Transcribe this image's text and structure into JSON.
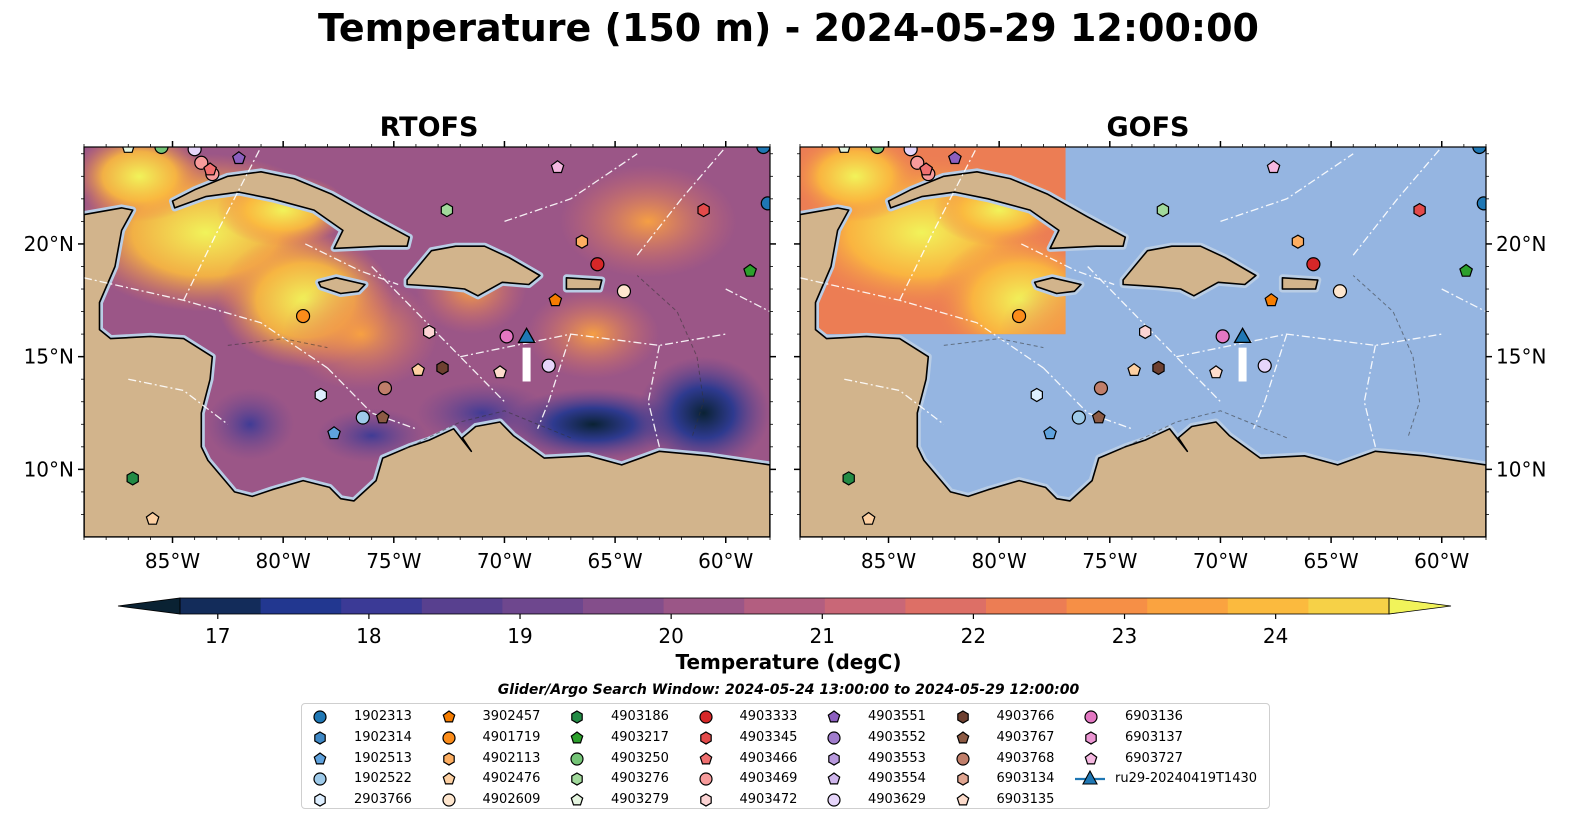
{
  "title": "Temperature (150 m) - 2024-05-29 12:00:00",
  "panels": [
    {
      "title": "RTOFS",
      "data_extent": "full"
    },
    {
      "title": "GOFS",
      "data_extent": "partial"
    }
  ],
  "axes": {
    "lon_ticks": [
      "85°W",
      "80°W",
      "75°W",
      "70°W",
      "65°W",
      "60°W"
    ],
    "lat_ticks": [
      "20°N",
      "15°N",
      "10°N"
    ],
    "lon_range": [
      -89,
      -58
    ],
    "lat_range": [
      7,
      24.3
    ]
  },
  "colorbar": {
    "label": "Temperature (degC)",
    "ticks": [
      "17",
      "18",
      "19",
      "20",
      "21",
      "22",
      "23",
      "24"
    ],
    "range": [
      16.75,
      24.75
    ],
    "extend": "both",
    "colors": [
      "#0a2233",
      "#132c5a",
      "#223790",
      "#3b3a96",
      "#58408f",
      "#6e478e",
      "#844e8b",
      "#9b5687",
      "#b35e80",
      "#c96777",
      "#dd6f66",
      "#ec7d54",
      "#f68f46",
      "#faa340",
      "#fbba3e",
      "#f6d147",
      "#f1f35a"
    ]
  },
  "legend": {
    "title": "Glider/Argo Search Window: 2024-05-24 13:00:00 to 2024-05-29 12:00:00",
    "items": [
      {
        "label": "1902313",
        "color": "#1f77b4",
        "marker": "circle"
      },
      {
        "label": "1902314",
        "color": "#3f88c5",
        "marker": "hexagon"
      },
      {
        "label": "1902513",
        "color": "#5fa2dd",
        "marker": "pentagon"
      },
      {
        "label": "1902522",
        "color": "#9ecae9",
        "marker": "circle"
      },
      {
        "label": "2903766",
        "color": "#deefff",
        "marker": "hexagon"
      },
      {
        "label": "3902457",
        "color": "#f57c00",
        "marker": "pentagon"
      },
      {
        "label": "4901719",
        "color": "#fb8c1a",
        "marker": "circle"
      },
      {
        "label": "4902113",
        "color": "#fdae61",
        "marker": "hexagon"
      },
      {
        "label": "4902476",
        "color": "#fdd0a2",
        "marker": "pentagon"
      },
      {
        "label": "4902609",
        "color": "#fee6ce",
        "marker": "circle"
      },
      {
        "label": "4903186",
        "color": "#238b45",
        "marker": "hexagon"
      },
      {
        "label": "4903217",
        "color": "#2ca02c",
        "marker": "pentagon"
      },
      {
        "label": "4903250",
        "color": "#74c476",
        "marker": "circle"
      },
      {
        "label": "4903276",
        "color": "#a1d99b",
        "marker": "hexagon"
      },
      {
        "label": "4903279",
        "color": "#e5f5e0",
        "marker": "pentagon"
      },
      {
        "label": "4903333",
        "color": "#d62728",
        "marker": "circle"
      },
      {
        "label": "4903345",
        "color": "#e34a4a",
        "marker": "hexagon"
      },
      {
        "label": "4903466",
        "color": "#ef6f6f",
        "marker": "pentagon"
      },
      {
        "label": "4903469",
        "color": "#f79b9b",
        "marker": "circle"
      },
      {
        "label": "4903472",
        "color": "#fcd4d4",
        "marker": "hexagon"
      },
      {
        "label": "4903551",
        "color": "#8c5fbf",
        "marker": "pentagon"
      },
      {
        "label": "4903552",
        "color": "#a07ccc",
        "marker": "circle"
      },
      {
        "label": "4903553",
        "color": "#b899dd",
        "marker": "hexagon"
      },
      {
        "label": "4903554",
        "color": "#cfb6ec",
        "marker": "pentagon"
      },
      {
        "label": "4903629",
        "color": "#e6d5fa",
        "marker": "circle"
      },
      {
        "label": "4903766",
        "color": "#6e4030",
        "marker": "hexagon"
      },
      {
        "label": "4903767",
        "color": "#8c5a44",
        "marker": "pentagon"
      },
      {
        "label": "4903768",
        "color": "#c07e6a",
        "marker": "circle"
      },
      {
        "label": "6903134",
        "color": "#e0a591",
        "marker": "hexagon"
      },
      {
        "label": "6903135",
        "color": "#fddccc",
        "marker": "pentagon"
      },
      {
        "label": "6903136",
        "color": "#e377c2",
        "marker": "circle"
      },
      {
        "label": "6903137",
        "color": "#eb95d2",
        "marker": "hexagon"
      },
      {
        "label": "6903727",
        "color": "#f5b8e1",
        "marker": "pentagon"
      },
      {
        "label": "ru29-20240419T1430",
        "color": "#1f77b4",
        "marker": "triangle-line"
      }
    ]
  },
  "floats": [
    {
      "id": "1902313",
      "lon": -58.1,
      "lat": 21.8
    },
    {
      "id": "1902313",
      "lon": -58.3,
      "lat": 24.3
    },
    {
      "id": "1902522",
      "lon": -76.4,
      "lat": 12.3
    },
    {
      "id": "1902513",
      "lon": -77.7,
      "lat": 11.6
    },
    {
      "id": "2903766",
      "lon": -78.3,
      "lat": 13.3
    },
    {
      "id": "3902457",
      "lon": -67.7,
      "lat": 17.5
    },
    {
      "id": "4901719",
      "lon": -79.1,
      "lat": 16.8
    },
    {
      "id": "4902113",
      "lon": -66.5,
      "lat": 20.1
    },
    {
      "id": "4902476",
      "lon": -73.9,
      "lat": 14.4
    },
    {
      "id": "4902476",
      "lon": -85.9,
      "lat": 7.8
    },
    {
      "id": "4902609",
      "lon": -64.6,
      "lat": 17.9
    },
    {
      "id": "4903186",
      "lon": -86.8,
      "lat": 9.6
    },
    {
      "id": "4903217",
      "lon": -58.9,
      "lat": 18.8
    },
    {
      "id": "4903250",
      "lon": -85.5,
      "lat": 24.3
    },
    {
      "id": "4903276",
      "lon": -72.6,
      "lat": 21.5
    },
    {
      "id": "4903279",
      "lon": -87.0,
      "lat": 24.3
    },
    {
      "id": "4903333",
      "lon": -65.8,
      "lat": 19.1
    },
    {
      "id": "4903345",
      "lon": -61.0,
      "lat": 21.5
    },
    {
      "id": "4903469",
      "lon": -83.2,
      "lat": 23.1
    },
    {
      "id": "4903469",
      "lon": -83.7,
      "lat": 23.6
    },
    {
      "id": "4903466",
      "lon": -83.3,
      "lat": 23.3
    },
    {
      "id": "4903472",
      "lon": -73.4,
      "lat": 16.1
    },
    {
      "id": "4903551",
      "lon": -82.0,
      "lat": 23.8
    },
    {
      "id": "4903629",
      "lon": -68.0,
      "lat": 14.6
    },
    {
      "id": "4903629",
      "lon": -84.0,
      "lat": 24.2
    },
    {
      "id": "4903766",
      "lon": -72.8,
      "lat": 14.5
    },
    {
      "id": "4903767",
      "lon": -75.5,
      "lat": 12.3
    },
    {
      "id": "4903768",
      "lon": -75.4,
      "lat": 13.6
    },
    {
      "id": "6903135",
      "lon": -70.2,
      "lat": 14.3
    },
    {
      "id": "6903136",
      "lon": -69.9,
      "lat": 15.9
    },
    {
      "id": "6903727",
      "lon": -67.6,
      "lat": 23.4
    }
  ],
  "glider": {
    "id": "ru29-20240419T1430",
    "lon": -69.0,
    "lat": 15.9,
    "track": [
      {
        "lon": -69.0,
        "lat": 15.4
      },
      {
        "lon": -69.0,
        "lat": 13.9
      }
    ]
  },
  "colors": {
    "ocean_no_data": "#95b5e1",
    "land": "#d2b48c",
    "shelf": "#b9cde5"
  }
}
